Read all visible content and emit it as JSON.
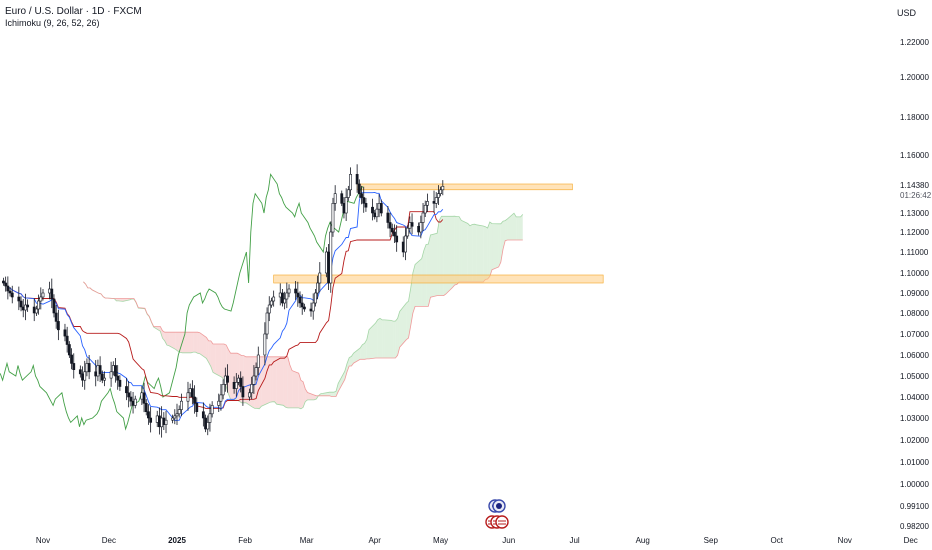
{
  "header": {
    "title": "Euro / U.S. Dollar · 1D · FXCM",
    "indicator": "Ichimoku (9, 26, 52, 26)",
    "currency": "USD"
  },
  "last_price": {
    "value": "1.14380",
    "countdown": "01:26:42"
  },
  "colors": {
    "bull": "#ffffff",
    "bear": "#131722",
    "tenkan": "#2962ff",
    "kijun": "#b71c1c",
    "chikou": "#43a047",
    "cloud_bull": "#a5d6a7",
    "cloud_bear": "#ef9a9a",
    "zone": "#ffcc80"
  },
  "chart_data": {
    "type": "candlestick",
    "title": "Euro / U.S. Dollar · 1D · FXCM",
    "y_axis": {
      "side": "right",
      "ticks": [
        "1.22000",
        "1.20000",
        "1.18000",
        "1.16000",
        "1.13000",
        "1.12000",
        "1.11000",
        "1.10000",
        "1.09000",
        "1.08000",
        "1.07000",
        "1.06000",
        "1.05000",
        "1.04000",
        "1.03000",
        "1.02000",
        "1.01000",
        "1.00000",
        "0.99100",
        "0.98200"
      ],
      "tick_values": [
        1.22,
        1.2,
        1.18,
        1.16,
        1.13,
        1.12,
        1.11,
        1.1,
        1.09,
        1.08,
        1.07,
        1.06,
        1.05,
        1.04,
        1.03,
        1.02,
        1.01,
        1.0,
        0.991,
        0.982
      ]
    },
    "x_axis": {
      "labels": [
        "Nov",
        "Dec",
        "2025",
        "Feb",
        "Mar",
        "Apr",
        "May",
        "Jun",
        "Jul",
        "Aug",
        "Sep",
        "Oct",
        "Nov",
        "Dec"
      ],
      "dates": [
        "2024-11-01",
        "2024-12-01",
        "2025-01-01",
        "2025-02-01",
        "2025-03-01",
        "2025-04-01",
        "2025-05-01",
        "2025-06-01",
        "2025-07-01",
        "2025-08-01",
        "2025-09-01",
        "2025-10-01",
        "2025-11-01",
        "2025-12-01"
      ]
    },
    "candles": {
      "start_date": "2024-10-13",
      "closes": [
        1.095,
        1.0935,
        1.091,
        1.09,
        1.088,
        1.086,
        1.083,
        1.0815,
        1.084,
        1.083,
        1.08,
        1.082,
        1.086,
        1.088,
        1.09,
        1.092,
        1.087,
        1.08,
        1.076,
        1.072,
        1.069,
        1.065,
        1.06,
        1.056,
        1.053,
        1.051,
        1.048,
        1.052,
        1.056,
        1.052,
        1.05,
        1.055,
        1.051,
        1.048,
        1.049,
        1.052,
        1.055,
        1.05,
        1.048,
        1.045,
        1.042,
        1.04,
        1.038,
        1.036,
        1.039,
        1.042,
        1.037,
        1.033,
        1.03,
        1.028,
        1.031,
        1.026,
        1.03,
        1.027,
        1.029,
        1.03,
        1.031,
        1.032,
        1.034,
        1.038,
        1.042,
        1.044,
        1.04,
        1.037,
        1.033,
        1.03,
        1.025,
        1.028,
        1.032,
        1.036,
        1.038,
        1.041,
        1.046,
        1.05,
        1.047,
        1.044,
        1.047,
        1.049,
        1.045,
        1.04,
        1.042,
        1.046,
        1.05,
        1.054,
        1.06,
        1.07,
        1.08,
        1.084,
        1.086,
        1.088,
        1.09,
        1.085,
        1.087,
        1.09,
        1.092,
        1.09,
        1.088,
        1.085,
        1.083,
        1.082,
        1.081,
        1.085,
        1.09,
        1.095,
        1.1,
        1.11,
        1.095,
        1.12,
        1.135,
        1.14,
        1.135,
        1.13,
        1.138,
        1.142,
        1.15,
        1.145,
        1.14,
        1.138,
        1.135,
        1.133,
        1.13,
        1.128,
        1.132,
        1.135,
        1.13,
        1.125,
        1.122,
        1.12,
        1.118,
        1.115,
        1.11,
        1.118,
        1.122,
        1.125,
        1.123,
        1.12,
        1.125,
        1.13,
        1.134,
        1.136,
        1.135,
        1.138,
        1.14,
        1.142,
        1.1438
      ]
    },
    "ichimoku": {
      "params": [
        9,
        26,
        52,
        26
      ],
      "lines": [
        "tenkan",
        "kijun",
        "chikou",
        "senkou_a",
        "senkou_b"
      ]
    },
    "zones": [
      {
        "from": 1.142,
        "to": 1.145,
        "start": "2025-03-24",
        "end": "2025-06-30"
      },
      {
        "from": 1.095,
        "to": 1.099,
        "start": "2025-02-14",
        "end": "2025-07-14"
      }
    ],
    "legend": "top-left",
    "grid": false
  }
}
